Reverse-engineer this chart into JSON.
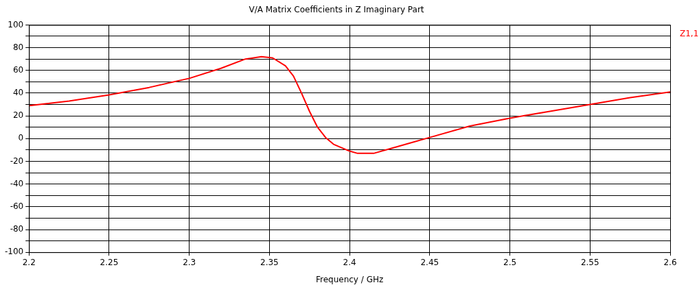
{
  "chart_data": {
    "type": "line",
    "title": "V/A Matrix Coefficients in Z Imaginary Part",
    "xlabel": "Frequency / GHz",
    "xlim": [
      2.2,
      2.6
    ],
    "xticks": [
      2.2,
      2.25,
      2.3,
      2.35,
      2.4,
      2.45,
      2.5,
      2.55,
      2.6
    ],
    "ylim": [
      -100,
      100
    ],
    "yticks": [
      -100,
      {
        "value": -90,
        "label": null
      },
      -80,
      {
        "value": -70,
        "label": null
      },
      -60,
      {
        "value": -50,
        "label": null
      },
      -40,
      {
        "value": -30,
        "label": null
      },
      -20,
      {
        "value": -10,
        "label": null
      },
      0,
      {
        "value": 10,
        "label": null
      },
      20,
      {
        "value": 30,
        "label": null
      },
      40,
      {
        "value": 50,
        "label": null
      },
      60,
      {
        "value": 70,
        "label": null
      },
      80,
      {
        "value": 90,
        "label": null
      },
      100
    ],
    "grid": true,
    "legend": "top right",
    "marker": "none",
    "line_style": "solid",
    "series": [
      {
        "name": "Z1,1",
        "color": "#ff0000",
        "x": [
          2.2,
          2.225,
          2.25,
          2.275,
          2.3,
          2.32,
          2.335,
          2.345,
          2.352,
          2.36,
          2.365,
          2.37,
          2.375,
          2.38,
          2.385,
          2.39,
          2.4,
          2.405,
          2.415,
          2.425,
          2.44,
          2.45,
          2.475,
          2.5,
          2.525,
          2.55,
          2.575,
          2.6
        ],
        "values": [
          29,
          33,
          38.5,
          45,
          53,
          62,
          70,
          72,
          71,
          64,
          55,
          40,
          24,
          10,
          1,
          -5,
          -11,
          -13,
          -13,
          -9,
          -3,
          1,
          11,
          18,
          24,
          30,
          36,
          41
        ]
      }
    ]
  }
}
